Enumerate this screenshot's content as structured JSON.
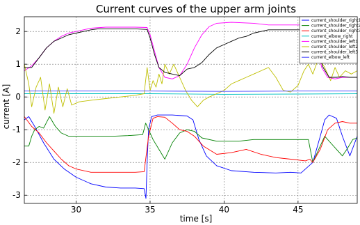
{
  "chart_data": {
    "type": "line",
    "title": "Current curves of the upper arm joints",
    "xlabel": "time [s]",
    "ylabel": "current [A]",
    "xlim": [
      26.5,
      49
    ],
    "ylim": [
      -3.25,
      2.45
    ],
    "xticks": [
      30,
      35,
      40,
      45
    ],
    "yticks": [
      -3,
      -2,
      -1,
      0,
      1,
      2
    ],
    "grid": true,
    "legend_position": "top-right",
    "series": [
      {
        "name": "current_shoulder_right1",
        "color": "#0000ff",
        "points": [
          [
            26.5,
            -0.7
          ],
          [
            26.8,
            -0.6
          ],
          [
            27.2,
            -0.9
          ],
          [
            27.8,
            -1.4
          ],
          [
            28.5,
            -1.9
          ],
          [
            29.2,
            -2.2
          ],
          [
            30,
            -2.45
          ],
          [
            31,
            -2.65
          ],
          [
            32,
            -2.75
          ],
          [
            33,
            -2.78
          ],
          [
            34,
            -2.78
          ],
          [
            34.6,
            -2.8
          ],
          [
            34.72,
            -3.1
          ],
          [
            34.8,
            -2.0
          ],
          [
            34.9,
            -1.0
          ],
          [
            35.1,
            -0.6
          ],
          [
            35.5,
            -0.55
          ],
          [
            36.5,
            -0.55
          ],
          [
            37.5,
            -0.58
          ],
          [
            37.9,
            -0.7
          ],
          [
            38.3,
            -1.3
          ],
          [
            38.8,
            -1.8
          ],
          [
            39.5,
            -2.1
          ],
          [
            40.5,
            -2.25
          ],
          [
            42,
            -2.3
          ],
          [
            43.5,
            -2.32
          ],
          [
            44.5,
            -2.3
          ],
          [
            45.2,
            -2.32
          ],
          [
            46,
            -2.0
          ],
          [
            46.5,
            -1.2
          ],
          [
            46.8,
            -0.7
          ],
          [
            47.1,
            -0.55
          ],
          [
            47.6,
            -0.65
          ],
          [
            48,
            -1.2
          ],
          [
            48.5,
            -1.8
          ],
          [
            49,
            -1.2
          ]
        ]
      },
      {
        "name": "current_shoulder_right2",
        "color": "#008000",
        "points": [
          [
            26.5,
            -1.5
          ],
          [
            26.8,
            -1.5
          ],
          [
            27,
            -1.2
          ],
          [
            27.2,
            -1.0
          ],
          [
            27.5,
            -0.9
          ],
          [
            27.8,
            -0.95
          ],
          [
            28.2,
            -0.6
          ],
          [
            28.6,
            -0.9
          ],
          [
            29,
            -1.1
          ],
          [
            29.5,
            -1.2
          ],
          [
            30.5,
            -1.2
          ],
          [
            31.5,
            -1.2
          ],
          [
            32.5,
            -1.2
          ],
          [
            33.5,
            -1.18
          ],
          [
            34.5,
            -1.15
          ],
          [
            34.7,
            -0.8
          ],
          [
            34.9,
            -1.0
          ],
          [
            35.2,
            -1.3
          ],
          [
            35.6,
            -1.6
          ],
          [
            36,
            -1.9
          ],
          [
            36.5,
            -1.4
          ],
          [
            37,
            -1.1
          ],
          [
            37.5,
            -1.0
          ],
          [
            38,
            -1.05
          ],
          [
            38.5,
            -1.25
          ],
          [
            39.5,
            -1.35
          ],
          [
            41,
            -1.35
          ],
          [
            42,
            -1.3
          ],
          [
            43,
            -1.3
          ],
          [
            44,
            -1.3
          ],
          [
            45,
            -1.3
          ],
          [
            45.7,
            -1.3
          ],
          [
            46,
            -2.0
          ],
          [
            46.4,
            -1.6
          ],
          [
            46.8,
            -1.2
          ],
          [
            47.2,
            -1.4
          ],
          [
            47.6,
            -1.6
          ],
          [
            48,
            -1.8
          ],
          [
            48.3,
            -1.6
          ],
          [
            48.7,
            -1.3
          ],
          [
            49,
            -1.25
          ]
        ]
      },
      {
        "name": "current_shoulder_right3",
        "color": "#ff0000",
        "points": [
          [
            26.5,
            -0.6
          ],
          [
            27,
            -0.9
          ],
          [
            27.5,
            -1.1
          ],
          [
            28,
            -1.4
          ],
          [
            28.5,
            -1.65
          ],
          [
            29,
            -1.9
          ],
          [
            29.5,
            -2.1
          ],
          [
            30,
            -2.2
          ],
          [
            31,
            -2.3
          ],
          [
            32,
            -2.3
          ],
          [
            33,
            -2.3
          ],
          [
            34,
            -2.3
          ],
          [
            34.6,
            -2.28
          ],
          [
            34.9,
            -1.2
          ],
          [
            35.2,
            -0.65
          ],
          [
            35.5,
            -0.6
          ],
          [
            36,
            -0.62
          ],
          [
            36.5,
            -0.8
          ],
          [
            37,
            -1.0
          ],
          [
            37.5,
            -1.05
          ],
          [
            38,
            -1.2
          ],
          [
            38.6,
            -1.5
          ],
          [
            39.5,
            -1.75
          ],
          [
            40.5,
            -1.7
          ],
          [
            41.5,
            -1.6
          ],
          [
            42.5,
            -1.75
          ],
          [
            43.5,
            -1.85
          ],
          [
            44.5,
            -1.9
          ],
          [
            45.5,
            -1.95
          ],
          [
            45.8,
            -1.9
          ],
          [
            46,
            -2.0
          ],
          [
            46.5,
            -1.6
          ],
          [
            47,
            -1.0
          ],
          [
            47.5,
            -0.8
          ],
          [
            48,
            -0.75
          ],
          [
            48.5,
            -0.8
          ],
          [
            49,
            -0.8
          ]
        ]
      },
      {
        "name": "current_elbow_right",
        "color": "#00c0c0",
        "points": [
          [
            26.5,
            0.1
          ],
          [
            30,
            0.1
          ],
          [
            35,
            0.1
          ],
          [
            40,
            0.08
          ],
          [
            45,
            0.09
          ],
          [
            49,
            0.1
          ]
        ]
      },
      {
        "name": "current_shoulder_left1",
        "color": "#ff00ff",
        "points": [
          [
            26.5,
            0.8
          ],
          [
            27,
            0.95
          ],
          [
            27.5,
            1.2
          ],
          [
            28,
            1.5
          ],
          [
            28.5,
            1.7
          ],
          [
            29,
            1.85
          ],
          [
            29.5,
            1.95
          ],
          [
            30,
            2.0
          ],
          [
            30.5,
            2.05
          ],
          [
            31,
            2.1
          ],
          [
            32,
            2.13
          ],
          [
            33,
            2.13
          ],
          [
            34,
            2.13
          ],
          [
            34.8,
            2.12
          ],
          [
            35,
            1.9
          ],
          [
            35.3,
            1.4
          ],
          [
            35.6,
            0.9
          ],
          [
            36,
            0.6
          ],
          [
            36.5,
            0.55
          ],
          [
            37,
            0.65
          ],
          [
            37.5,
            1.0
          ],
          [
            38,
            1.5
          ],
          [
            38.5,
            1.9
          ],
          [
            39,
            2.15
          ],
          [
            39.5,
            2.25
          ],
          [
            40.5,
            2.28
          ],
          [
            42,
            2.25
          ],
          [
            43,
            2.2
          ],
          [
            44,
            2.2
          ],
          [
            45,
            2.2
          ],
          [
            45.5,
            2.2
          ],
          [
            46,
            2.15
          ],
          [
            46.3,
            1.5
          ],
          [
            46.6,
            0.9
          ],
          [
            47,
            0.6
          ],
          [
            47.5,
            0.55
          ],
          [
            48,
            0.6
          ],
          [
            48.5,
            0.6
          ],
          [
            49,
            0.6
          ]
        ]
      },
      {
        "name": "current_shoulder_left2",
        "color": "#bfbf00",
        "points": [
          [
            26.5,
            1.0
          ],
          [
            26.8,
            0.4
          ],
          [
            27,
            -0.3
          ],
          [
            27.3,
            0.3
          ],
          [
            27.6,
            0.6
          ],
          [
            27.9,
            -0.4
          ],
          [
            28.2,
            0.4
          ],
          [
            28.5,
            -0.5
          ],
          [
            28.8,
            0.3
          ],
          [
            29.1,
            -0.3
          ],
          [
            29.4,
            0.25
          ],
          [
            29.7,
            -0.25
          ],
          [
            30.2,
            -0.15
          ],
          [
            31,
            -0.1
          ],
          [
            32,
            -0.05
          ],
          [
            33,
            0.0
          ],
          [
            34,
            0.05
          ],
          [
            34.6,
            0.1
          ],
          [
            34.8,
            0.9
          ],
          [
            35,
            0.2
          ],
          [
            35.2,
            0.5
          ],
          [
            35.4,
            0.3
          ],
          [
            35.6,
            0.7
          ],
          [
            35.8,
            0.4
          ],
          [
            36,
            1.0
          ],
          [
            36.3,
            0.7
          ],
          [
            36.6,
            1.0
          ],
          [
            37,
            0.6
          ],
          [
            37.4,
            0.2
          ],
          [
            37.8,
            -0.1
          ],
          [
            38.2,
            -0.3
          ],
          [
            38.6,
            -0.1
          ],
          [
            39.0,
            0.0
          ],
          [
            39.5,
            0.1
          ],
          [
            40,
            0.2
          ],
          [
            40.5,
            0.4
          ],
          [
            41,
            0.5
          ],
          [
            41.5,
            0.6
          ],
          [
            42,
            0.7
          ],
          [
            42.5,
            0.8
          ],
          [
            43,
            0.9
          ],
          [
            43.5,
            0.6
          ],
          [
            44,
            0.2
          ],
          [
            44.5,
            0.15
          ],
          [
            45,
            0.35
          ],
          [
            45.4,
            0.8
          ],
          [
            45.7,
            1.0
          ],
          [
            46,
            0.7
          ],
          [
            46.4,
            1.2
          ],
          [
            46.8,
            0.9
          ],
          [
            47.2,
            0.5
          ],
          [
            47.5,
            0.9
          ],
          [
            47.8,
            0.6
          ],
          [
            48.2,
            0.8
          ],
          [
            48.6,
            0.7
          ],
          [
            49,
            0.8
          ]
        ]
      },
      {
        "name": "current_shoulder_left3",
        "color": "#000000",
        "points": [
          [
            26.5,
            0.9
          ],
          [
            27,
            0.9
          ],
          [
            27.5,
            1.2
          ],
          [
            28,
            1.5
          ],
          [
            28.5,
            1.7
          ],
          [
            29,
            1.8
          ],
          [
            29.5,
            1.9
          ],
          [
            30,
            1.95
          ],
          [
            30.5,
            2.0
          ],
          [
            31,
            2.05
          ],
          [
            31.5,
            2.08
          ],
          [
            32,
            2.08
          ],
          [
            33,
            2.08
          ],
          [
            34,
            2.08
          ],
          [
            34.8,
            2.06
          ],
          [
            35,
            1.8
          ],
          [
            35.3,
            1.3
          ],
          [
            35.6,
            0.9
          ],
          [
            36,
            0.75
          ],
          [
            36.5,
            0.7
          ],
          [
            37,
            0.65
          ],
          [
            37.5,
            0.85
          ],
          [
            38,
            0.9
          ],
          [
            38.5,
            1.05
          ],
          [
            39,
            1.3
          ],
          [
            39.5,
            1.5
          ],
          [
            40,
            1.6
          ],
          [
            40.5,
            1.7
          ],
          [
            41,
            1.8
          ],
          [
            41.5,
            1.85
          ],
          [
            42,
            1.95
          ],
          [
            42.5,
            2.0
          ],
          [
            43,
            2.05
          ],
          [
            44,
            2.05
          ],
          [
            45,
            2.05
          ],
          [
            45.5,
            2.05
          ],
          [
            46,
            2.0
          ],
          [
            46.3,
            1.4
          ],
          [
            46.7,
            0.9
          ],
          [
            47.1,
            0.6
          ],
          [
            47.6,
            0.6
          ],
          [
            48,
            0.62
          ],
          [
            48.5,
            0.6
          ],
          [
            49,
            0.6
          ]
        ]
      },
      {
        "name": "current_elbow_left",
        "color": "#4040ff",
        "points": [
          [
            26.5,
            0.18
          ],
          [
            30,
            0.18
          ],
          [
            35,
            0.18
          ],
          [
            40,
            0.17
          ],
          [
            45,
            0.18
          ],
          [
            49,
            0.18
          ]
        ]
      }
    ]
  }
}
